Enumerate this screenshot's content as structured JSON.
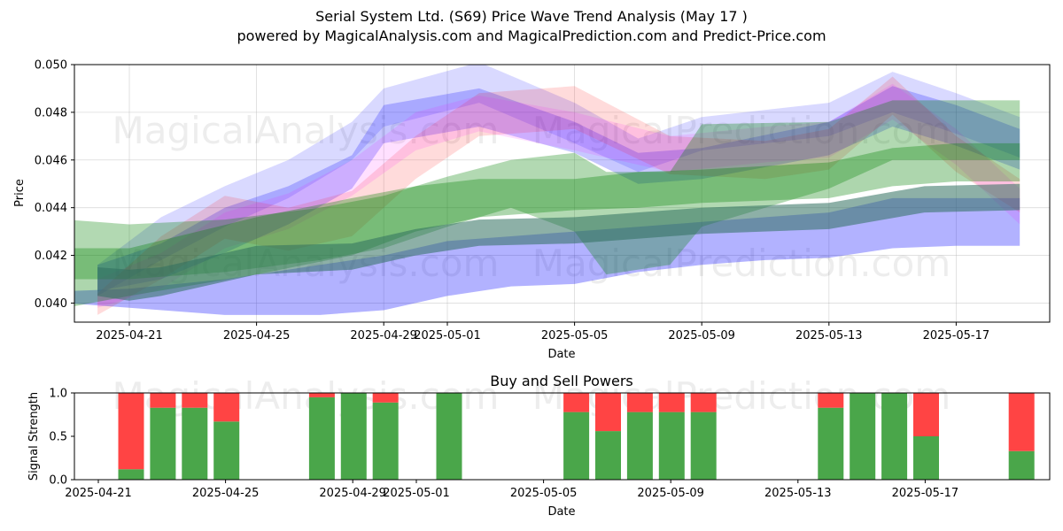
{
  "chart_data": [
    {
      "type": "area",
      "title": "Serial System Ltd. (S69) Price Wave Trend Analysis (May 17 )",
      "subtitle": "powered by MagicalAnalysis.com and MagicalPrediction.com and Predict-Price.com",
      "xlabel": "Date",
      "ylabel": "Price",
      "xlim": [
        "2025-04-19.5",
        "2025-05-20.5"
      ],
      "ylim": [
        0.0392,
        0.05
      ],
      "x_ticks": [
        "2025-04-21",
        "2025-04-25",
        "2025-04-29",
        "2025-05-01",
        "2025-05-05",
        "2025-05-09",
        "2025-05-13",
        "2025-05-17"
      ],
      "y_ticks": [
        "0.040",
        "0.042",
        "0.044",
        "0.046",
        "0.048",
        "0.050"
      ],
      "grid": true,
      "watermarks": [
        "MagicalAnalysis.com",
        "MagicalPrediction.com",
        "MagicalAnalysis.com",
        "MagicalPrediction.com"
      ],
      "series": [
        {
          "color": "#0000ff",
          "opacity": 0.3,
          "x": [
            "2025-04-19",
            "2025-04-21",
            "2025-04-24",
            "2025-04-27",
            "2025-04-29",
            "2025-05-01",
            "2025-05-03",
            "2025-05-05",
            "2025-05-07",
            "2025-05-09",
            "2025-05-11",
            "2025-05-13",
            "2025-05-15",
            "2025-05-17",
            "2025-05-19"
          ],
          "upper": [
            0.0405,
            0.0406,
            0.041,
            0.0416,
            0.042,
            0.0426,
            0.0428,
            0.043,
            0.0432,
            0.0434,
            0.0436,
            0.0438,
            0.0444,
            0.0444,
            0.0444
          ],
          "lower": [
            0.04,
            0.0398,
            0.0395,
            0.0395,
            0.0397,
            0.0403,
            0.0407,
            0.0408,
            0.0413,
            0.0416,
            0.0418,
            0.0419,
            0.0423,
            0.0424,
            0.0424
          ]
        },
        {
          "color": "#0000ff",
          "opacity": 0.22,
          "x": [
            "2025-04-20",
            "2025-04-22",
            "2025-04-24",
            "2025-04-26",
            "2025-04-28",
            "2025-04-29",
            "2025-05-02",
            "2025-05-05",
            "2025-05-07",
            "2025-05-09",
            "2025-05-13",
            "2025-05-15",
            "2025-05-17",
            "2025-05-19"
          ],
          "upper": [
            0.0416,
            0.0425,
            0.044,
            0.0449,
            0.0462,
            0.0483,
            0.049,
            0.0476,
            0.0463,
            0.0465,
            0.0476,
            0.0491,
            0.0483,
            0.0473
          ],
          "lower": [
            0.0405,
            0.041,
            0.0421,
            0.0433,
            0.0448,
            0.0467,
            0.0474,
            0.0463,
            0.045,
            0.0452,
            0.0462,
            0.0474,
            0.0466,
            0.0456
          ]
        },
        {
          "color": "#0000ff",
          "opacity": 0.15,
          "x": [
            "2025-04-20",
            "2025-04-22",
            "2025-04-24",
            "2025-04-26",
            "2025-04-28",
            "2025-04-29",
            "2025-05-02",
            "2025-05-05",
            "2025-05-07",
            "2025-05-09",
            "2025-05-13",
            "2025-05-15",
            "2025-05-17",
            "2025-05-19"
          ],
          "upper": [
            0.0416,
            0.0436,
            0.0449,
            0.046,
            0.0476,
            0.049,
            0.0501,
            0.0484,
            0.0469,
            0.0478,
            0.0484,
            0.0497,
            0.0488,
            0.0478
          ],
          "lower": [
            0.0403,
            0.0418,
            0.0432,
            0.0444,
            0.046,
            0.0474,
            0.0484,
            0.0467,
            0.0455,
            0.0464,
            0.047,
            0.048,
            0.0471,
            0.0461
          ]
        },
        {
          "color": "#ff0000",
          "opacity": 0.14,
          "x": [
            "2025-04-20",
            "2025-04-22",
            "2025-04-24",
            "2025-04-26",
            "2025-04-28",
            "2025-04-30",
            "2025-05-02",
            "2025-05-05",
            "2025-05-08",
            "2025-05-11",
            "2025-05-13",
            "2025-05-15",
            "2025-05-17",
            "2025-05-19"
          ],
          "upper": [
            0.0404,
            0.0428,
            0.0445,
            0.044,
            0.0447,
            0.047,
            0.0488,
            0.0491,
            0.047,
            0.0468,
            0.0473,
            0.0495,
            0.047,
            0.0452
          ],
          "lower": [
            0.0395,
            0.041,
            0.0427,
            0.0422,
            0.0428,
            0.0452,
            0.047,
            0.0473,
            0.0454,
            0.0452,
            0.0456,
            0.0479,
            0.0455,
            0.0438
          ]
        },
        {
          "color": "#ff00ff",
          "opacity": 0.12,
          "x": [
            "2025-04-20",
            "2025-04-22",
            "2025-04-24",
            "2025-04-26",
            "2025-04-28",
            "2025-04-30",
            "2025-05-02",
            "2025-05-05",
            "2025-05-08",
            "2025-05-11",
            "2025-05-13",
            "2025-05-15",
            "2025-05-17",
            "2025-05-19"
          ],
          "upper": [
            0.041,
            0.0421,
            0.0438,
            0.0446,
            0.046,
            0.048,
            0.0487,
            0.048,
            0.047,
            0.0474,
            0.0476,
            0.0492,
            0.0473,
            0.0448
          ],
          "lower": [
            0.0398,
            0.0406,
            0.0423,
            0.0431,
            0.0445,
            0.0464,
            0.0472,
            0.0464,
            0.0455,
            0.0459,
            0.0461,
            0.0477,
            0.0458,
            0.0433
          ]
        },
        {
          "color": "#008000",
          "opacity": 0.32,
          "x": [
            "2025-04-19",
            "2025-04-21",
            "2025-04-25",
            "2025-04-28",
            "2025-04-30",
            "2025-05-02",
            "2025-05-05",
            "2025-05-07",
            "2025-05-09",
            "2025-05-13",
            "2025-05-15",
            "2025-05-17",
            "2025-05-19"
          ],
          "upper": [
            0.0423,
            0.0423,
            0.0436,
            0.0444,
            0.0449,
            0.0452,
            0.0452,
            0.0455,
            0.0456,
            0.0459,
            0.0465,
            0.0467,
            0.0467
          ],
          "lower": [
            0.0398,
            0.0403,
            0.0412,
            0.042,
            0.043,
            0.0436,
            0.0439,
            0.044,
            0.0442,
            0.0444,
            0.0449,
            0.0451,
            0.0451
          ]
        },
        {
          "color": "#008000",
          "opacity": 0.3,
          "x": [
            "2025-04-19",
            "2025-04-21",
            "2025-04-24",
            "2025-04-27",
            "2025-04-29",
            "2025-05-01",
            "2025-05-03",
            "2025-05-05",
            "2025-05-06",
            "2025-05-08",
            "2025-05-09",
            "2025-05-13",
            "2025-05-15",
            "2025-05-17",
            "2025-05-19"
          ],
          "upper": [
            0.0435,
            0.0433,
            0.0435,
            0.044,
            0.0445,
            0.0453,
            0.046,
            0.0463,
            0.0455,
            0.0455,
            0.0475,
            0.0476,
            0.0485,
            0.0485,
            0.0485
          ],
          "lower": [
            0.041,
            0.041,
            0.0413,
            0.0418,
            0.0423,
            0.0432,
            0.044,
            0.043,
            0.0412,
            0.0416,
            0.0432,
            0.0448,
            0.046,
            0.046,
            0.046
          ]
        },
        {
          "color": "#2f6f5f",
          "opacity": 0.55,
          "x": [
            "2025-04-20",
            "2025-04-21",
            "2025-04-22",
            "2025-04-25",
            "2025-04-28",
            "2025-04-30",
            "2025-05-02",
            "2025-05-05",
            "2025-05-09",
            "2025-05-13",
            "2025-05-16",
            "2025-05-19"
          ],
          "upper": [
            0.0415,
            0.0414,
            0.0415,
            0.0424,
            0.0425,
            0.0431,
            0.0435,
            0.0436,
            0.044,
            0.0442,
            0.0449,
            0.045
          ],
          "lower": [
            0.0403,
            0.0401,
            0.0403,
            0.0412,
            0.0414,
            0.042,
            0.0424,
            0.0425,
            0.0429,
            0.0431,
            0.0438,
            0.0439
          ]
        }
      ]
    },
    {
      "type": "bar",
      "title": "Buy and Sell Powers",
      "xlabel": "Date",
      "ylabel": "Signal Strength",
      "ylim": [
        0,
        1
      ],
      "y_ticks": [
        "0.0",
        "0.5",
        "1.0"
      ],
      "x_ticks": [
        "2025-04-21",
        "2025-04-25",
        "2025-04-29",
        "2025-05-01",
        "2025-05-05",
        "2025-05-09",
        "2025-05-13",
        "2025-05-17"
      ],
      "buy_color": "#4aa64a",
      "sell_color": "#ff4444",
      "x": [
        "2025-04-21",
        "2025-04-22",
        "2025-04-23",
        "2025-04-24",
        "2025-04-27",
        "2025-04-28",
        "2025-04-29",
        "2025-05-01",
        "2025-05-05",
        "2025-05-06",
        "2025-05-07",
        "2025-05-08",
        "2025-05-09",
        "2025-05-13",
        "2025-05-14",
        "2025-05-15",
        "2025-05-16",
        "2025-05-19"
      ],
      "buy": [
        0.12,
        0.83,
        0.83,
        0.67,
        0.95,
        1.0,
        0.89,
        1.0,
        0.78,
        0.56,
        0.78,
        0.78,
        0.78,
        0.83,
        1.0,
        1.0,
        0.5,
        0.33
      ],
      "sell": [
        0.88,
        0.17,
        0.17,
        0.33,
        0.05,
        0.0,
        0.11,
        0.0,
        0.22,
        0.44,
        0.22,
        0.22,
        0.22,
        0.17,
        0.0,
        0.0,
        0.5,
        0.67
      ]
    }
  ]
}
